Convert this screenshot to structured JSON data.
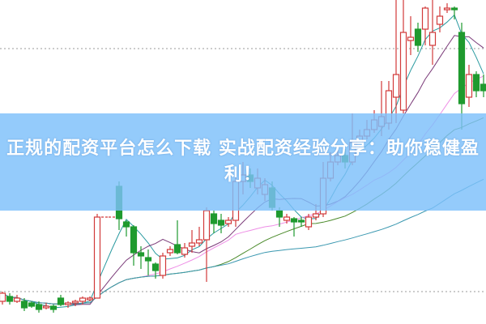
{
  "title": "正规的配资平台怎么下载 实战配资经验分享：助你稳健盈利！",
  "colors": {
    "up": "#d23a3a",
    "down": "#1f9a2e",
    "banner": "#7dc0fa",
    "ma": [
      "#2a9aa0",
      "#7a3a78",
      "#ee8ee6",
      "#4a8a2a",
      "#3a98b0"
    ],
    "grid": "#999999"
  },
  "chart_data": {
    "type": "candlestick",
    "grid": "dotted horizontal",
    "gridlines": [
      85,
      10
    ],
    "ylim": [
      0,
      100
    ],
    "moving_averages": [
      5,
      10,
      20,
      30,
      60
    ],
    "candles": [
      [
        7,
        10,
        6,
        9.5
      ],
      [
        8.5,
        9.5,
        6,
        7
      ],
      [
        7,
        9,
        6.5,
        8
      ],
      [
        7,
        8,
        4,
        5
      ],
      [
        6.5,
        7,
        5,
        5.5
      ],
      [
        6,
        7,
        3.5,
        4.5
      ],
      [
        5,
        6.5,
        4.5,
        5.5
      ],
      [
        5.5,
        6,
        3.5,
        4.5
      ],
      [
        8,
        9,
        5.5,
        6
      ],
      [
        6,
        7,
        5,
        6.5
      ],
      [
        6.5,
        7.5,
        5.5,
        7
      ],
      [
        7,
        8.5,
        6,
        8
      ],
      [
        7.5,
        8.5,
        7,
        8
      ],
      [
        8,
        34,
        8,
        33
      ],
      [
        33,
        33,
        33,
        33
      ],
      [
        33,
        33,
        33,
        33
      ],
      [
        42.5,
        44,
        29,
        32.5
      ],
      [
        31.5,
        32,
        27,
        30
      ],
      [
        30,
        30.5,
        18,
        22
      ],
      [
        22,
        24,
        17,
        21
      ],
      [
        20.5,
        23,
        15,
        19.5
      ],
      [
        18.5,
        19,
        14,
        16.5
      ],
      [
        15,
        22,
        14,
        21
      ],
      [
        22,
        24,
        21,
        23
      ],
      [
        24.5,
        32,
        21.5,
        22
      ],
      [
        21.5,
        25,
        20.5,
        23.5
      ],
      [
        24,
        29,
        22,
        25
      ],
      [
        25,
        30,
        24,
        26
      ],
      [
        26,
        36,
        13,
        35
      ],
      [
        34,
        35,
        28,
        31
      ],
      [
        32,
        34,
        28,
        30.5
      ],
      [
        31,
        33,
        30,
        32
      ],
      [
        32,
        46,
        30,
        44
      ],
      [
        44,
        50,
        40,
        46
      ],
      [
        46,
        48,
        42,
        44
      ],
      [
        42,
        48,
        40,
        45
      ],
      [
        40,
        45,
        38,
        43
      ],
      [
        42,
        44,
        35,
        36
      ],
      [
        35,
        36,
        30,
        33
      ],
      [
        32,
        34,
        31,
        33
      ],
      [
        32.5,
        33,
        27,
        31.5
      ],
      [
        32,
        33,
        30,
        31.5
      ],
      [
        30,
        34,
        29,
        33
      ],
      [
        33,
        37,
        32,
        34
      ],
      [
        34,
        50,
        33,
        45
      ],
      [
        45,
        53,
        44,
        50
      ],
      [
        50,
        55,
        49,
        52
      ],
      [
        52,
        54,
        48,
        50
      ],
      [
        50,
        65,
        49,
        56
      ],
      [
        55,
        60,
        54,
        58
      ],
      [
        58,
        63,
        57,
        60
      ],
      [
        60,
        66,
        59,
        63
      ],
      [
        61,
        75,
        58,
        64
      ],
      [
        62,
        75,
        60,
        72
      ],
      [
        70,
        100,
        62,
        77
      ],
      [
        66,
        100,
        65,
        90
      ],
      [
        87.5,
        95,
        83,
        88.5
      ],
      [
        91,
        93,
        84,
        86
      ],
      [
        91,
        98,
        86,
        97.5
      ],
      [
        86,
        100,
        80,
        90
      ],
      [
        92.5,
        98,
        90,
        95
      ],
      [
        97,
        99,
        96,
        97.5
      ],
      [
        97.5,
        98,
        94,
        97
      ],
      [
        90,
        93,
        60,
        68
      ],
      [
        70,
        80,
        67,
        77
      ],
      [
        77,
        78,
        70,
        72
      ],
      [
        74,
        77,
        70,
        72
      ]
    ]
  }
}
